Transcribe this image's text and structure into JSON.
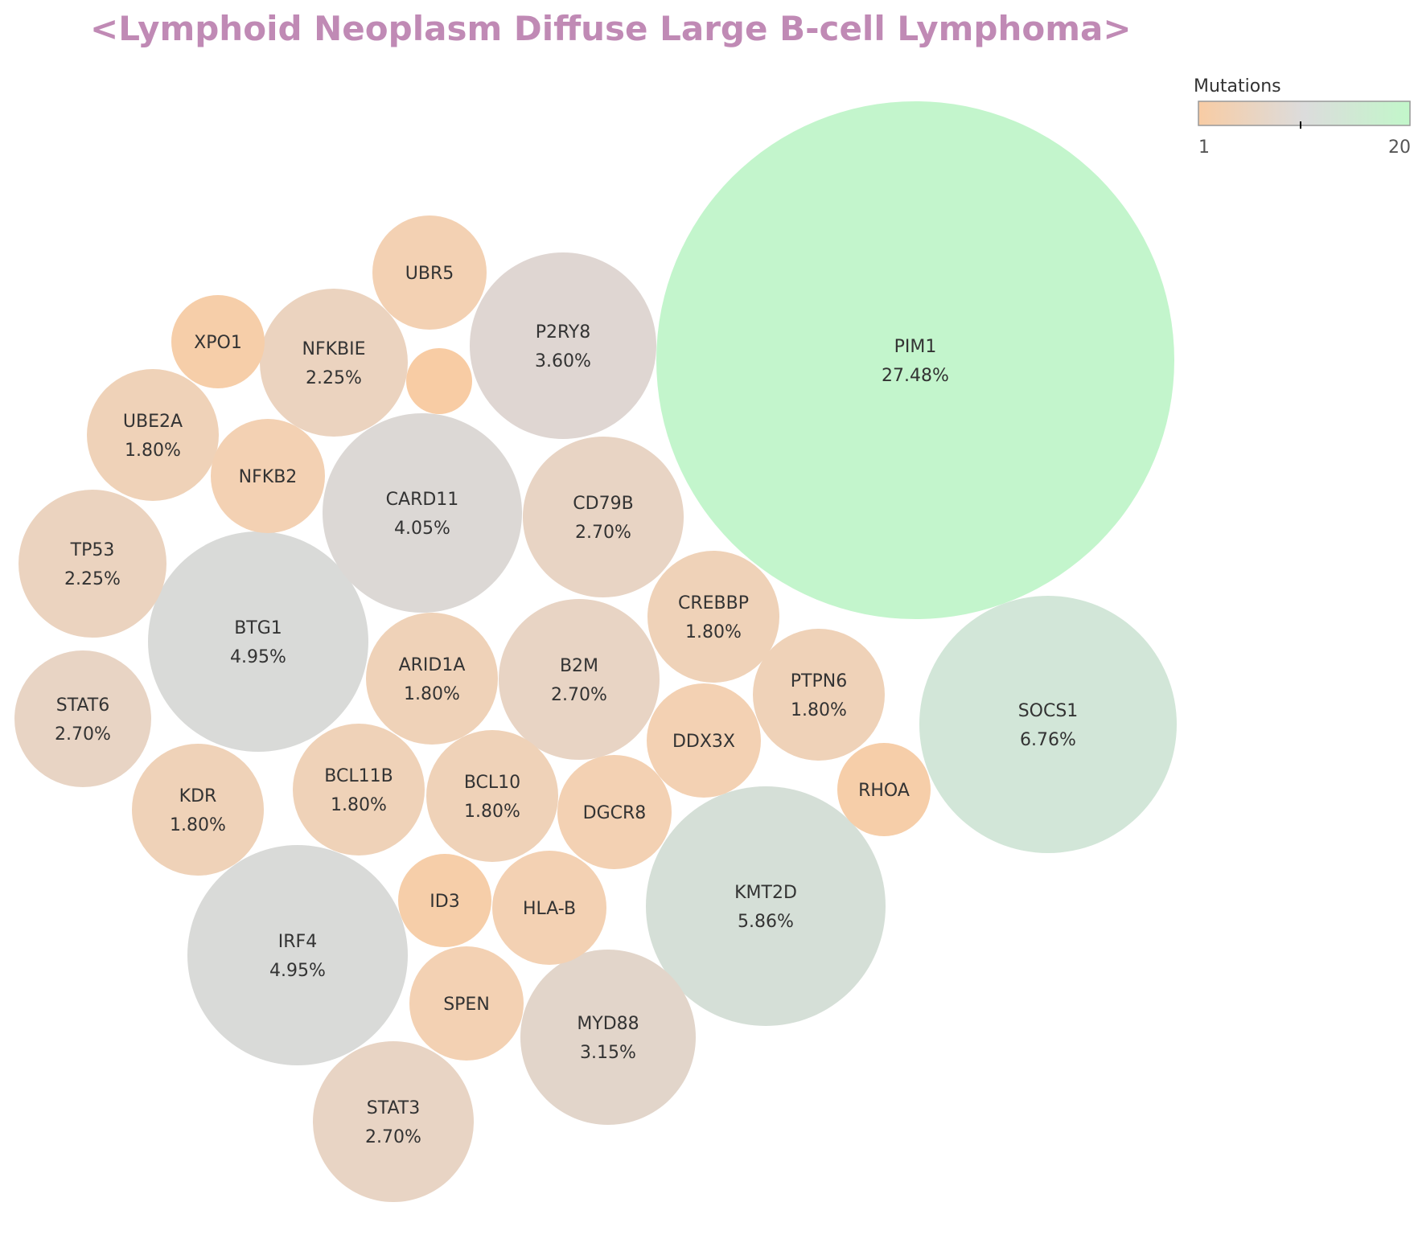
{
  "chart_data": {
    "type": "bubble",
    "title": "<Lymphoid Neoplasm Diffuse Large B-cell Lymphoma>",
    "title_color": "#c08ab5",
    "legend": {
      "title": "Mutations",
      "min_label": "1",
      "max_label": "20",
      "placement": "top-right",
      "gradient": [
        "#f8cca4",
        "#dcdcdc",
        "#c2f7ca"
      ]
    },
    "bubbles": [
      {
        "gene": "PIM1",
        "percent": "27.48%",
        "mutations": 20,
        "color": "#c3f5cc"
      },
      {
        "gene": "SOCS1",
        "percent": "6.76%",
        "mutations": 5,
        "color": "#d2e6d8"
      },
      {
        "gene": "KMT2D",
        "percent": "5.86%",
        "mutations": 5,
        "color": "#d5dfd7"
      },
      {
        "gene": "BTG1",
        "percent": "4.95%",
        "mutations": 4,
        "color": "#d9dad8"
      },
      {
        "gene": "IRF4",
        "percent": "4.95%",
        "mutations": 4,
        "color": "#d9dad8"
      },
      {
        "gene": "CARD11",
        "percent": "4.05%",
        "mutations": 4,
        "color": "#dcd8d5"
      },
      {
        "gene": "P2RY8",
        "percent": "3.60%",
        "mutations": 4,
        "color": "#dfd6d2"
      },
      {
        "gene": "MYD88",
        "percent": "3.15%",
        "mutations": 3,
        "color": "#e2d5ca"
      },
      {
        "gene": "CD79B",
        "percent": "2.70%",
        "mutations": 3,
        "color": "#e8d4c4"
      },
      {
        "gene": "B2M",
        "percent": "2.70%",
        "mutations": 3,
        "color": "#e8d4c4"
      },
      {
        "gene": "STAT6",
        "percent": "2.70%",
        "mutations": 3,
        "color": "#e8d4c4"
      },
      {
        "gene": "STAT3",
        "percent": "2.70%",
        "mutations": 3,
        "color": "#e8d4c4"
      },
      {
        "gene": "NFKBIE",
        "percent": "2.25%",
        "mutations": 2,
        "color": "#ebd3bf"
      },
      {
        "gene": "TP53",
        "percent": "2.25%",
        "mutations": 2,
        "color": "#ebd3bf"
      },
      {
        "gene": "UBE2A",
        "percent": "1.80%",
        "mutations": 2,
        "color": "#efd2b8"
      },
      {
        "gene": "ARID1A",
        "percent": "1.80%",
        "mutations": 2,
        "color": "#efd2b8"
      },
      {
        "gene": "CREBBP",
        "percent": "1.80%",
        "mutations": 2,
        "color": "#efd2b8"
      },
      {
        "gene": "PTPN6",
        "percent": "1.80%",
        "mutations": 2,
        "color": "#efd2b8"
      },
      {
        "gene": "KDR",
        "percent": "1.80%",
        "mutations": 2,
        "color": "#efd2b8"
      },
      {
        "gene": "BCL11B",
        "percent": "1.80%",
        "mutations": 2,
        "color": "#efd2b8"
      },
      {
        "gene": "BCL10",
        "percent": "1.80%",
        "mutations": 2,
        "color": "#efd2b8"
      },
      {
        "gene": "UBR5",
        "percent": "",
        "mutations": 1,
        "color": "#f3d1b3"
      },
      {
        "gene": "NFKB2",
        "percent": "",
        "mutations": 1,
        "color": "#f3d1b3"
      },
      {
        "gene": "DDX3X",
        "percent": "",
        "mutations": 1,
        "color": "#f3d1b3"
      },
      {
        "gene": "DGCR8",
        "percent": "",
        "mutations": 1,
        "color": "#f3d1b3"
      },
      {
        "gene": "HLA-B",
        "percent": "",
        "mutations": 1,
        "color": "#f3d1b3"
      },
      {
        "gene": "SPEN",
        "percent": "",
        "mutations": 1,
        "color": "#f3d1b3"
      },
      {
        "gene": "XPO1",
        "percent": "",
        "mutations": 1,
        "color": "#f6cea9"
      },
      {
        "gene": "RHOA",
        "percent": "",
        "mutations": 1,
        "color": "#f6cea9"
      },
      {
        "gene": "ID3",
        "percent": "",
        "mutations": 1,
        "color": "#f6cea9"
      },
      {
        "gene": "",
        "percent": "",
        "mutations": 1,
        "color": "#f8cca4"
      }
    ]
  }
}
